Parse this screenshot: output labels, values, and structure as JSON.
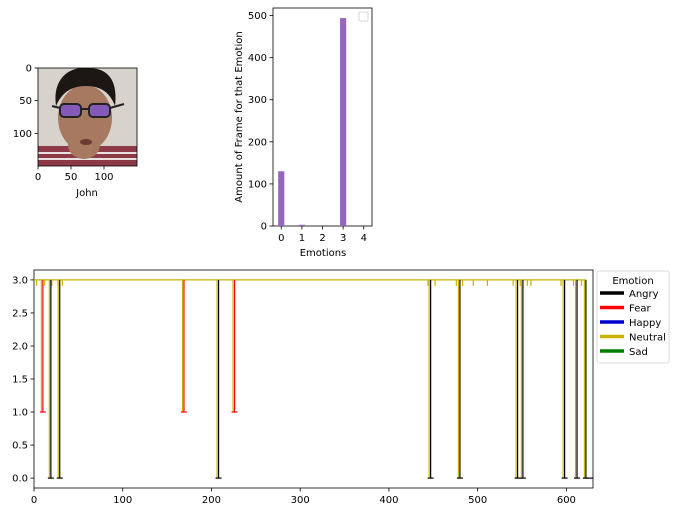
{
  "chart_data": [
    {
      "type": "image",
      "xlabel": "John",
      "xticks": [
        0,
        50,
        100
      ],
      "yticks": [
        0,
        50,
        100
      ],
      "xlim": [
        0,
        150
      ],
      "ylim": [
        150,
        0
      ],
      "colors": {
        "background": "#d8d2cc",
        "skin": "#a67960",
        "hair": "#1d1714",
        "glasses": "#7a4fd6",
        "shirt": "#8c3a48"
      }
    },
    {
      "type": "bar",
      "xlabel": "Emotions",
      "ylabel": "Amount of Frame for that Emotion",
      "categories": [
        0,
        1,
        2,
        3,
        4
      ],
      "bars": [
        {
          "x": 0,
          "value": 130
        },
        {
          "x": 1,
          "value": 3
        },
        {
          "x": 3,
          "value": 494
        }
      ],
      "xlim": [
        -0.4,
        4.4
      ],
      "ylim": [
        0,
        518
      ],
      "yticks": [
        0,
        100,
        200,
        300,
        400,
        500
      ],
      "xticks": [
        0,
        1,
        2,
        3,
        4
      ],
      "bar_color": "#9467bd",
      "legend": "empty, top-right"
    },
    {
      "type": "line",
      "xlim": [
        0,
        630
      ],
      "ylim": [
        -0.15,
        3.15
      ],
      "xticks": [
        0,
        100,
        200,
        300,
        400,
        500,
        600
      ],
      "yticks": [
        0.0,
        0.5,
        1.0,
        1.5,
        2.0,
        2.5,
        3.0
      ],
      "legend_title": "Emotion",
      "legend": [
        {
          "name": "Angry",
          "color": "#000000"
        },
        {
          "name": "Fear",
          "color": "#ff0000"
        },
        {
          "name": "Happy",
          "color": "#0000cc"
        },
        {
          "name": "Neutral",
          "color": "#c8b400"
        },
        {
          "name": "Sad",
          "color": "#008000"
        }
      ],
      "baseline": 3,
      "dips": [
        {
          "x": 10,
          "y": 1,
          "series": "Fear"
        },
        {
          "x": 19,
          "y": 0,
          "series": "Angry"
        },
        {
          "x": 29,
          "y": 0,
          "series": "Angry"
        },
        {
          "x": 169,
          "y": 1,
          "series": "Fear"
        },
        {
          "x": 208,
          "y": 0,
          "series": "Angry"
        },
        {
          "x": 226,
          "y": 1,
          "series": "Fear"
        },
        {
          "x": 447,
          "y": 0,
          "series": "Angry"
        },
        {
          "x": 480,
          "y": 0,
          "series": "Angry"
        },
        {
          "x": 545,
          "y": 0,
          "series": "Angry"
        },
        {
          "x": 551,
          "y": 0,
          "series": "Angry"
        },
        {
          "x": 598,
          "y": 0,
          "series": "Angry"
        },
        {
          "x": 612,
          "y": 0,
          "series": "Angry"
        },
        {
          "x": 622,
          "y": 0,
          "series": "Angry"
        }
      ],
      "neutral_ticks": [
        3,
        12,
        20,
        27,
        32,
        444,
        452,
        476,
        483,
        495,
        511,
        540,
        548,
        556,
        560,
        594,
        608,
        617
      ],
      "tail": {
        "from": 622,
        "to": 630,
        "y": 0,
        "series": "Angry"
      }
    }
  ]
}
